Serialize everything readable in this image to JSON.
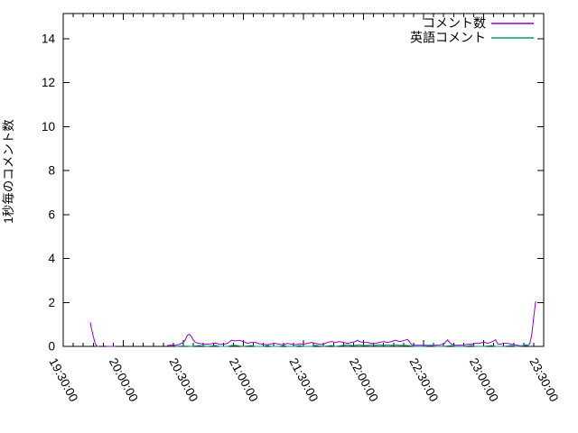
{
  "window": {
    "background": "#ffffff"
  },
  "colors": {
    "axis": "#000000",
    "text": "#000000",
    "series1": "#9400d3",
    "series2": "#009e73"
  },
  "chart_data": {
    "type": "line",
    "title": "",
    "xlabel": "",
    "ylabel": "1秒毎のコメント数",
    "grid": false,
    "legend_position": "top-right-inside",
    "x_axis": {
      "kind": "time",
      "start_label": "19:30:00",
      "end_label": "23:30:00",
      "range_minutes": [
        0,
        240
      ],
      "major_step_minutes": 30,
      "minor_step_minutes": 5,
      "tick_labels": [
        "19:30:00",
        "20:00:00",
        "20:30:00",
        "21:00:00",
        "21:30:00",
        "22:00:00",
        "22:30:00",
        "23:00:00",
        "23:30:00"
      ],
      "label_rotation_deg": 62
    },
    "y_axis": {
      "ticks": [
        0,
        2,
        4,
        6,
        8,
        10,
        12,
        14
      ],
      "ylim": [
        0,
        15.15
      ]
    },
    "series": [
      {
        "name": "コメント数",
        "color": "#9400d3",
        "points": [
          [
            13.5,
            1.1
          ],
          [
            14,
            0.85
          ],
          [
            15,
            0.45
          ],
          [
            16,
            0.12
          ],
          [
            17,
            0
          ],
          [
            18,
            0
          ],
          null,
          [
            21.5,
            0
          ],
          [
            26,
            0
          ],
          null,
          [
            52,
            0.04
          ],
          [
            54,
            0.06
          ],
          [
            56,
            0.05
          ],
          [
            58,
            0.1
          ],
          [
            60,
            0.18
          ],
          [
            61,
            0.3
          ],
          [
            62,
            0.5
          ],
          [
            63,
            0.55
          ],
          [
            64,
            0.45
          ],
          [
            65,
            0.28
          ],
          [
            66,
            0.18
          ],
          [
            68,
            0.14
          ],
          [
            70,
            0.1
          ],
          [
            72,
            0.1
          ],
          [
            74,
            0.12
          ],
          [
            76,
            0.15
          ],
          [
            78,
            0.1
          ],
          [
            80,
            0.1
          ],
          [
            82,
            0.14
          ],
          [
            84,
            0.28
          ],
          [
            86,
            0.25
          ],
          [
            88,
            0.28
          ],
          [
            90,
            0.22
          ],
          [
            92,
            0.14
          ],
          [
            94,
            0.18
          ],
          [
            96,
            0.18
          ],
          [
            98,
            0.12
          ],
          [
            100,
            0.1
          ],
          [
            102,
            0.08
          ],
          [
            104,
            0.12
          ],
          [
            106,
            0.14
          ],
          [
            108,
            0.1
          ],
          [
            110,
            0.08
          ],
          [
            112,
            0.14
          ],
          [
            114,
            0.1
          ],
          [
            116,
            0.08
          ],
          [
            118,
            0.12
          ],
          [
            120,
            0.1
          ],
          [
            122,
            0.14
          ],
          [
            124,
            0.18
          ],
          [
            126,
            0.14
          ],
          [
            128,
            0.1
          ],
          [
            130,
            0.1
          ],
          [
            132,
            0.18
          ],
          [
            134,
            0.22
          ],
          [
            136,
            0.18
          ],
          [
            138,
            0.22
          ],
          [
            140,
            0.18
          ],
          [
            142,
            0.14
          ],
          [
            144,
            0.18
          ],
          [
            146,
            0.22
          ],
          [
            147,
            0.28
          ],
          [
            148,
            0.22
          ],
          [
            150,
            0.18
          ],
          [
            152,
            0.18
          ],
          [
            154,
            0.14
          ],
          [
            156,
            0.14
          ],
          [
            158,
            0.18
          ],
          [
            160,
            0.22
          ],
          [
            162,
            0.18
          ],
          [
            164,
            0.22
          ],
          [
            166,
            0.28
          ],
          [
            168,
            0.22
          ],
          [
            170,
            0.26
          ],
          [
            172,
            0.32
          ],
          [
            173,
            0.2
          ],
          [
            174,
            0.08
          ],
          [
            176,
            0.05
          ],
          [
            178,
            0.05
          ],
          [
            180,
            0.05
          ],
          [
            182,
            0.05
          ],
          [
            184,
            0.05
          ],
          [
            186,
            0.05
          ],
          [
            188,
            0.06
          ],
          [
            190,
            0.1
          ],
          [
            192,
            0.3
          ],
          [
            193,
            0.18
          ],
          [
            194,
            0.1
          ],
          [
            196,
            0.05
          ],
          [
            198,
            0.05
          ],
          [
            200,
            0.06
          ],
          [
            202,
            0.1
          ],
          [
            204,
            0.1
          ],
          [
            206,
            0.14
          ],
          [
            208,
            0.14
          ],
          [
            210,
            0.2
          ],
          [
            212,
            0.14
          ],
          [
            214,
            0.2
          ],
          [
            216,
            0.3
          ],
          [
            217,
            0.12
          ],
          [
            218,
            0.1
          ],
          [
            220,
            0.14
          ],
          [
            222,
            0.14
          ],
          [
            224,
            0.1
          ],
          [
            226,
            0.06
          ],
          [
            228,
            0.03
          ],
          [
            230,
            0.03
          ],
          [
            232,
            0.05
          ],
          [
            233,
            0.12
          ],
          [
            234,
            0.5
          ],
          [
            235,
            1.3
          ],
          [
            236,
            2.05
          ]
        ]
      },
      {
        "name": "英語コメント",
        "color": "#009e73",
        "points": [
          [
            56,
            0
          ],
          [
            60,
            0.02
          ],
          [
            64,
            0
          ],
          [
            68,
            0.04
          ],
          [
            70,
            0.02
          ],
          [
            72,
            0
          ],
          [
            76,
            0.04
          ],
          [
            78,
            0
          ],
          [
            82,
            0
          ],
          [
            84,
            0.04
          ],
          [
            86,
            0.05
          ],
          [
            88,
            0.02
          ],
          [
            90,
            0
          ],
          [
            94,
            0.04
          ],
          [
            96,
            0
          ],
          [
            100,
            0
          ],
          [
            102,
            0.04
          ],
          [
            104,
            0
          ],
          [
            108,
            0
          ],
          [
            110,
            0.04
          ],
          [
            112,
            0
          ],
          [
            116,
            0
          ],
          [
            118,
            0.04
          ],
          [
            120,
            0
          ],
          [
            124,
            0
          ],
          [
            126,
            0.05
          ],
          [
            128,
            0.02
          ],
          [
            130,
            0
          ],
          [
            134,
            0.04
          ],
          [
            136,
            0
          ],
          [
            140,
            0.05
          ],
          [
            142,
            0.08
          ],
          [
            144,
            0.04
          ],
          [
            146,
            0.05
          ],
          [
            148,
            0.08
          ],
          [
            150,
            0.04
          ],
          [
            152,
            0.05
          ],
          [
            154,
            0.08
          ],
          [
            156,
            0.05
          ],
          [
            158,
            0.08
          ],
          [
            160,
            0.05
          ],
          [
            162,
            0.08
          ],
          [
            164,
            0.05
          ],
          [
            166,
            0.08
          ],
          [
            168,
            0.05
          ],
          [
            170,
            0.05
          ],
          [
            172,
            0.04
          ],
          [
            174,
            0.02
          ],
          [
            176,
            0
          ],
          [
            180,
            0
          ],
          [
            184,
            0.04
          ],
          [
            186,
            0
          ],
          [
            190,
            0
          ],
          [
            194,
            0.04
          ],
          [
            196,
            0
          ],
          [
            200,
            0
          ],
          [
            204,
            0.04
          ],
          [
            206,
            0
          ],
          [
            210,
            0
          ],
          [
            214,
            0.04
          ],
          [
            216,
            0
          ],
          [
            220,
            0
          ],
          [
            224,
            0.04
          ],
          [
            226,
            0
          ],
          [
            228,
            0
          ],
          [
            230,
            0.04
          ],
          [
            231,
            0.08
          ],
          [
            232,
            0.04
          ],
          [
            233,
            0
          ]
        ]
      }
    ]
  }
}
